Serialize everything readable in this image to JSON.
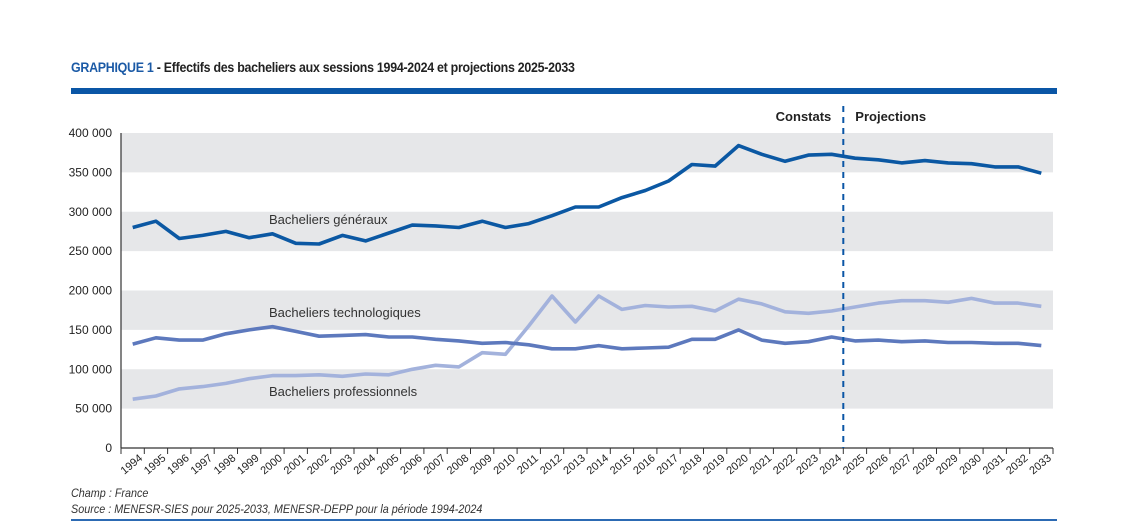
{
  "header": {
    "lead": "GRAPHIQUE 1",
    "title": " - Effectifs des bacheliers aux sessions 1994-2024 et projections 2025-2033"
  },
  "footer": {
    "champ": "Champ : France",
    "source": "Source : MENESR-SIES pour 2025-2033, MENESR-DEPP pour la période 1994-2024"
  },
  "colors": {
    "accent": "#0a56a6",
    "generaux": "#0b58a3",
    "technologiques": "#5d79bd",
    "professionnels": "#a3b2dc",
    "band": "#e6e7e9"
  },
  "chart_data": {
    "type": "line",
    "title": "Effectifs des bacheliers aux sessions 1994-2024 et projections 2025-2033",
    "xlabel": "",
    "ylabel": "",
    "ylim": [
      0,
      400000
    ],
    "yticks": [
      0,
      50000,
      100000,
      150000,
      200000,
      250000,
      300000,
      350000,
      400000
    ],
    "ytick_labels": [
      "0",
      "50 000",
      "100 000",
      "150 000",
      "200 000",
      "250 000",
      "300 000",
      "350 000",
      "400 000"
    ],
    "grid": "alternating horizontal bands",
    "x": [
      "1994",
      "1995",
      "1996",
      "1997",
      "1998",
      "1999",
      "2000",
      "2001",
      "2002",
      "2003",
      "2004",
      "2005",
      "2006",
      "2007",
      "2008",
      "2009",
      "2010",
      "2011",
      "2012",
      "2013",
      "2014",
      "2015",
      "2016",
      "2017",
      "2018",
      "2019",
      "2020",
      "2021",
      "2022",
      "2023",
      "2024",
      "2025",
      "2026",
      "2027",
      "2028",
      "2029",
      "2030",
      "2031",
      "2032",
      "2033"
    ],
    "divider": {
      "after": "2024",
      "left_label": "Constats",
      "right_label": "Projections"
    },
    "series": [
      {
        "name": "Bacheliers généraux",
        "values": [
          280000,
          288000,
          266000,
          270000,
          275000,
          267000,
          272000,
          260000,
          259000,
          270000,
          263000,
          273000,
          283000,
          282000,
          280000,
          288000,
          280000,
          285000,
          295000,
          306000,
          306000,
          318000,
          327000,
          339000,
          360000,
          358000,
          384000,
          373000,
          364000,
          372000,
          373000,
          368000,
          366000,
          362000,
          365000,
          362000,
          361000,
          357000,
          357000,
          349000
        ]
      },
      {
        "name": "Bacheliers technologiques",
        "values": [
          132000,
          140000,
          137000,
          137000,
          145000,
          150000,
          154000,
          148000,
          142000,
          143000,
          144000,
          141000,
          141000,
          138000,
          136000,
          133000,
          134000,
          131000,
          126000,
          126000,
          130000,
          126000,
          127000,
          128000,
          138000,
          138000,
          150000,
          137000,
          133000,
          135000,
          141000,
          136000,
          137000,
          135000,
          136000,
          134000,
          134000,
          133000,
          133000,
          130000
        ]
      },
      {
        "name": "Bacheliers professionnels",
        "values": [
          62000,
          66000,
          75000,
          78000,
          82000,
          88000,
          92000,
          92000,
          93000,
          91000,
          94000,
          93000,
          100000,
          105000,
          103000,
          121000,
          119000,
          155000,
          193000,
          160000,
          193000,
          176000,
          181000,
          179000,
          180000,
          174000,
          189000,
          183000,
          173000,
          171000,
          174000,
          179000,
          184000,
          187000,
          187000,
          185000,
          190000,
          184000,
          184000,
          180000
        ]
      }
    ],
    "annotations": [
      "Bacheliers généraux",
      "Bacheliers technologiques",
      "Bacheliers professionnels"
    ]
  }
}
